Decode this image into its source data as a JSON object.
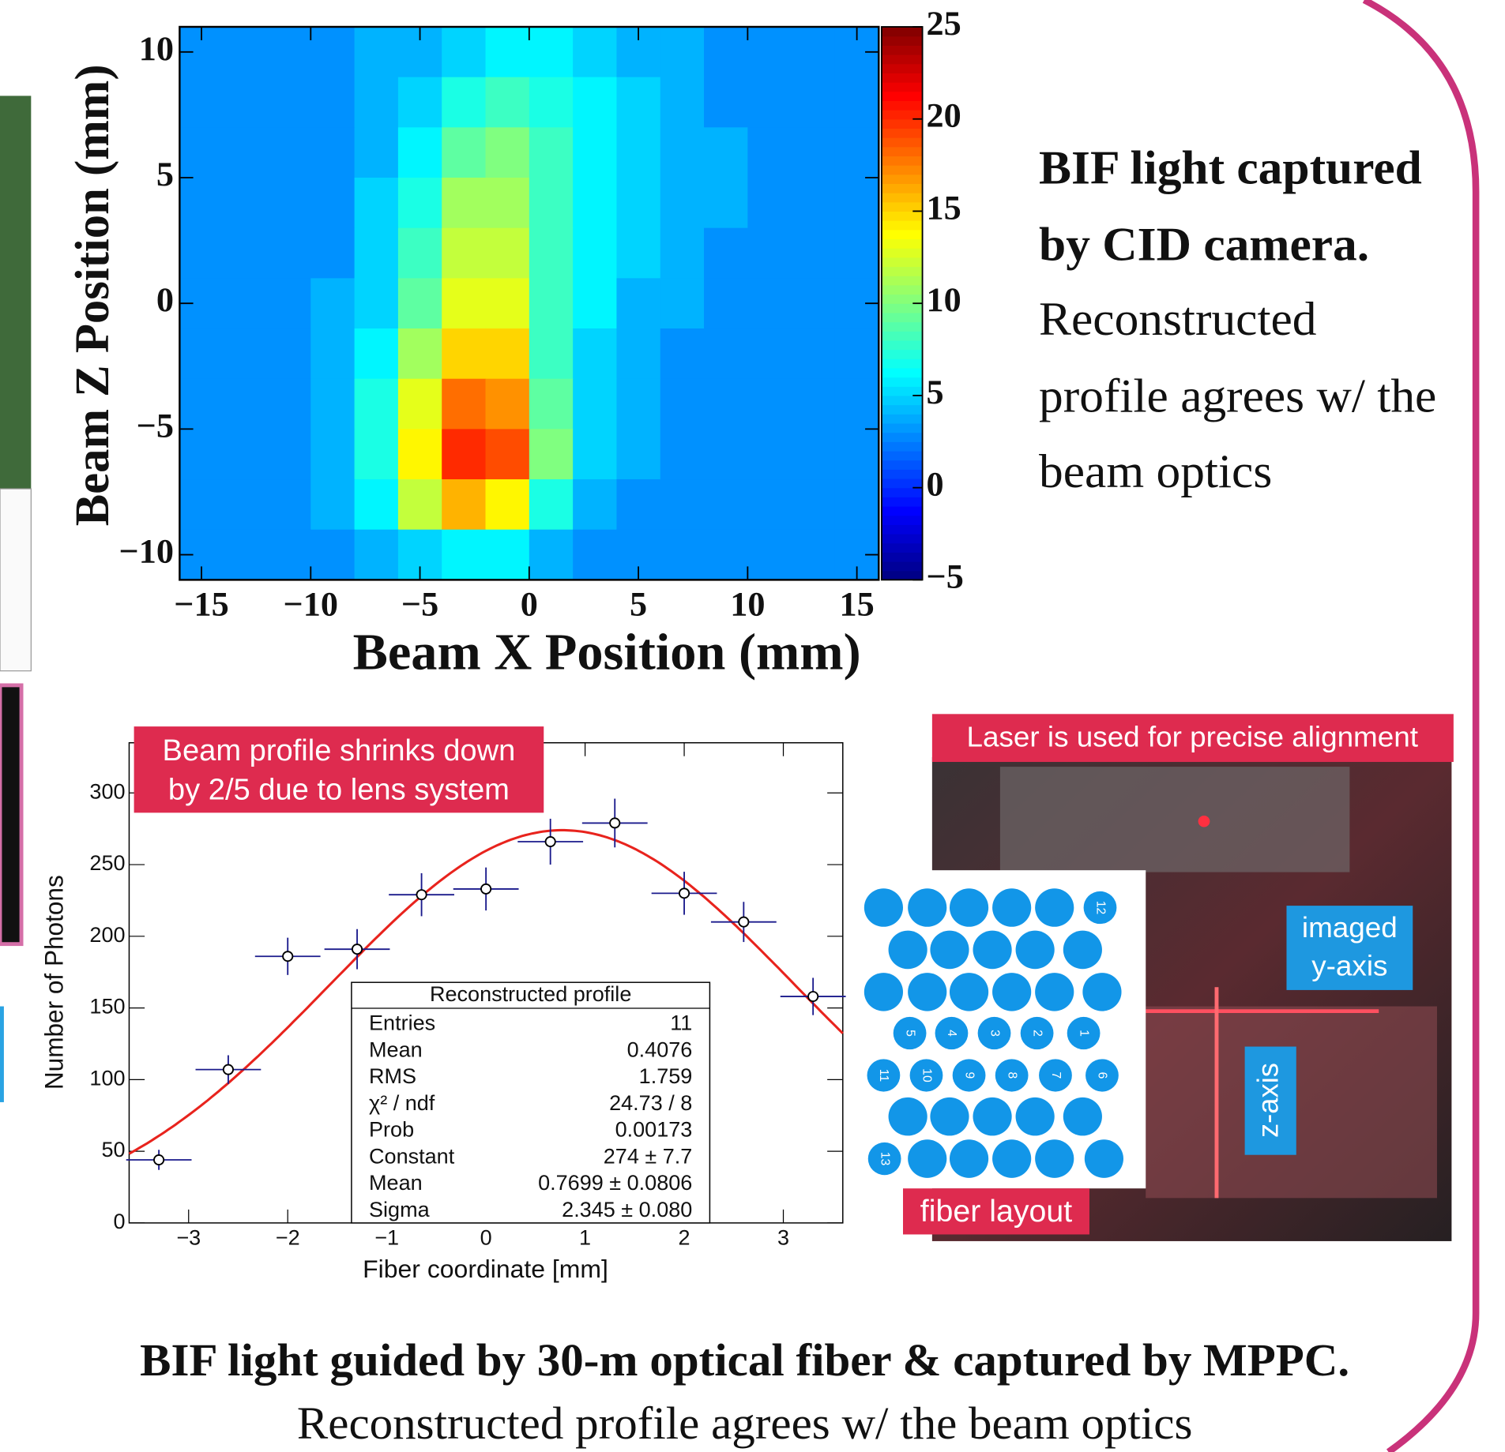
{
  "chart_data": [
    {
      "type": "heatmap",
      "xlabel": "Beam X Position (mm)",
      "ylabel": "Beam Z Position (mm)",
      "x": [
        -15,
        -13,
        -11,
        -9,
        -7,
        -5,
        -3,
        -1,
        1,
        3,
        5,
        7,
        9,
        11,
        13,
        15
      ],
      "y": [
        10,
        8,
        6,
        4,
        2,
        0,
        -2,
        -4,
        -6,
        -8,
        -10
      ],
      "z": [
        [
          3,
          3,
          3,
          3,
          4,
          4,
          5,
          6,
          6,
          5,
          4,
          4,
          3,
          3,
          3,
          3
        ],
        [
          3,
          3,
          3,
          3,
          4,
          5,
          7,
          8,
          7,
          6,
          5,
          4,
          3,
          3,
          3,
          3
        ],
        [
          3,
          3,
          3,
          3,
          4,
          6,
          9,
          10,
          8,
          6,
          5,
          4,
          4,
          3,
          3,
          3
        ],
        [
          3,
          3,
          3,
          3,
          5,
          7,
          11,
          11,
          8,
          6,
          5,
          4,
          4,
          3,
          3,
          3
        ],
        [
          3,
          3,
          3,
          3,
          5,
          8,
          12,
          12,
          8,
          6,
          5,
          4,
          3,
          3,
          3,
          3
        ],
        [
          3,
          3,
          3,
          4,
          5,
          9,
          13,
          13,
          8,
          6,
          4,
          4,
          3,
          3,
          3,
          3
        ],
        [
          3,
          3,
          3,
          4,
          6,
          11,
          15,
          15,
          8,
          5,
          4,
          3,
          3,
          3,
          3,
          3
        ],
        [
          3,
          3,
          3,
          4,
          7,
          13,
          18,
          17,
          9,
          5,
          4,
          3,
          3,
          3,
          3,
          3
        ],
        [
          3,
          3,
          3,
          4,
          7,
          14,
          20,
          19,
          10,
          5,
          4,
          3,
          3,
          3,
          3,
          3
        ],
        [
          3,
          3,
          3,
          4,
          6,
          12,
          16,
          14,
          7,
          4,
          3,
          3,
          3,
          3,
          3,
          3
        ],
        [
          3,
          3,
          3,
          3,
          4,
          5,
          6,
          6,
          4,
          3,
          3,
          3,
          3,
          3,
          3,
          3
        ]
      ],
      "xlim": [
        -16,
        16
      ],
      "ylim": [
        -11,
        11
      ],
      "zlim": [
        -5,
        25
      ],
      "colormap": "jet",
      "xticks": [
        {
          "value": -15,
          "label": "−15"
        },
        {
          "value": -10,
          "label": "−10"
        },
        {
          "value": -5,
          "label": "−5"
        },
        0,
        5,
        10,
        15
      ],
      "yticks": [
        {
          "value": -10,
          "label": "−10"
        },
        {
          "value": -5,
          "label": "−5"
        },
        0,
        5,
        10
      ],
      "zticks": [
        {
          "value": -5,
          "label": "−5"
        },
        0,
        5,
        10,
        15,
        20,
        25
      ]
    },
    {
      "type": "scatter",
      "xlabel": "Fiber coordinate [mm]",
      "ylabel": "Number of Photons",
      "annotation": [
        "Beam profile shrinks down",
        "by 2/5 due to lens system"
      ],
      "x": [
        -3.3,
        -2.6,
        -2.0,
        -1.3,
        -0.65,
        0,
        0.65,
        1.3,
        2.0,
        2.6,
        3.3
      ],
      "values": [
        44,
        107,
        186,
        191,
        229,
        233,
        266,
        279,
        230,
        210,
        158
      ],
      "xerr": [
        0.33,
        0.33,
        0.33,
        0.33,
        0.33,
        0.33,
        0.33,
        0.33,
        0.33,
        0.33,
        0.33
      ],
      "yerr": [
        7,
        10,
        13,
        14,
        15,
        15,
        16,
        17,
        15,
        14,
        13
      ],
      "color": "#1a1a8c",
      "fit_color": "#e8231d",
      "fit": {
        "constant": 274,
        "mean": 0.7699,
        "sigma": 2.345
      },
      "xlim": [
        -3.6,
        3.6
      ],
      "ylim": [
        0,
        335
      ],
      "xticks": [
        {
          "value": -3,
          "label": "−3"
        },
        {
          "value": -2,
          "label": "−2"
        },
        {
          "value": -1,
          "label": "−1"
        },
        0,
        1,
        2,
        3
      ],
      "yticks": [
        0,
        50,
        100,
        150,
        200,
        250,
        300
      ],
      "stats": {
        "title": "Reconstructed profile",
        "rows": [
          [
            "Entries",
            "11"
          ],
          [
            "Mean",
            "0.4076"
          ],
          [
            "RMS",
            "1.759"
          ],
          [
            "χ² / ndf",
            "24.73 / 8"
          ],
          [
            "Prob",
            "0.00173"
          ],
          [
            "Constant",
            "274 ± 7.7"
          ],
          [
            "Mean",
            "0.7699 ± 0.0806"
          ],
          [
            "Sigma",
            "2.345 ± 0.080"
          ]
        ]
      }
    }
  ],
  "side_text": {
    "bold": [
      "BIF light captured",
      "by CID camera."
    ],
    "normal": [
      "Reconstructed",
      "profile agrees w/ the",
      "beam optics"
    ]
  },
  "photo": {
    "header": "Laser is used for precise alignment",
    "y_axis": [
      "imaged",
      "y-axis"
    ],
    "z_axis": "z-axis",
    "layout_label": "fiber layout",
    "fiber_labels": [
      12,
      5,
      4,
      3,
      2,
      1,
      11,
      10,
      9,
      8,
      7,
      6,
      13
    ]
  },
  "caption": {
    "bold": "BIF light guided by 30-m optical fiber & captured by MPPC.",
    "normal": "Reconstructed profile agrees w/ the beam optics"
  }
}
